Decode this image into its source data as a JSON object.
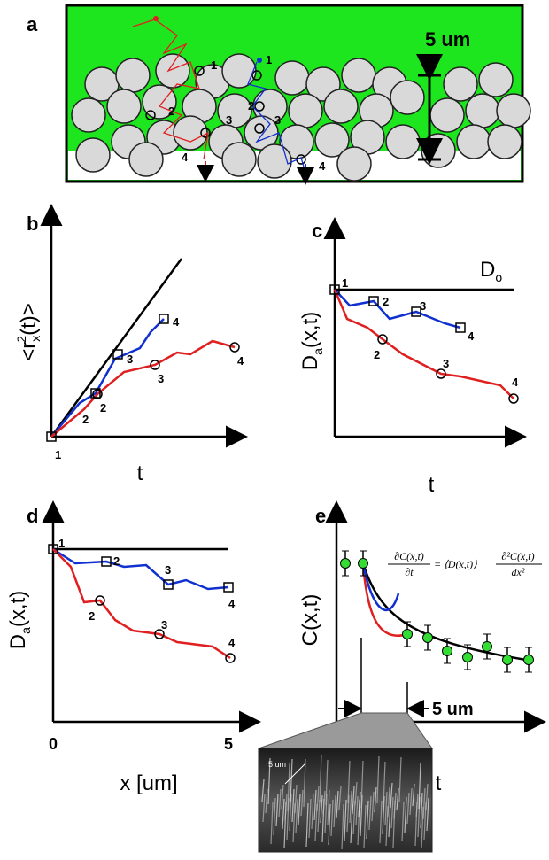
{
  "panel_a": {
    "letter": "a",
    "scale_bar": "5 um",
    "red_labels": [
      "1",
      "2",
      "3",
      "4"
    ],
    "blue_labels": [
      "1",
      "2",
      "3",
      "4"
    ]
  },
  "panel_b": {
    "letter": "b",
    "y_label": {
      "open": "<r",
      "sub": "x",
      "sup": "2",
      "close": "(t)>"
    },
    "x_label": "t",
    "blue_labels": [
      "1",
      "2",
      "3",
      "4"
    ],
    "red_labels": [
      "2",
      "3",
      "4"
    ]
  },
  "panel_c": {
    "letter": "c",
    "reference": {
      "main": "D",
      "sub": "o"
    },
    "y_label": {
      "main": "D",
      "sub": "a",
      "rest": "(x,t)"
    },
    "x_label": "t",
    "blue_labels": [
      "1",
      "2",
      "3",
      "4"
    ],
    "red_labels": [
      "2",
      "3",
      "4"
    ]
  },
  "panel_d": {
    "letter": "d",
    "y_label": {
      "main": "D",
      "sub": "a",
      "rest": "(x,t)"
    },
    "x_label": "x [um]",
    "x_start": "0",
    "x_end": "5",
    "blue_labels": [
      "1",
      "2",
      "3",
      "4"
    ],
    "red_labels": [
      "2",
      "3",
      "4"
    ]
  },
  "panel_e": {
    "letter": "e",
    "y_label": "C(x,t)",
    "x_label": "t",
    "scale_bar": "5 um",
    "equation": {
      "lhs_num": "∂C(x,t)",
      "lhs_den": "∂t",
      "middle": "= ⟨D(x,t)⟩",
      "rhs_num": "∂²C(x,t)",
      "rhs_den": "dx²"
    },
    "image_scale": "5 um"
  }
}
